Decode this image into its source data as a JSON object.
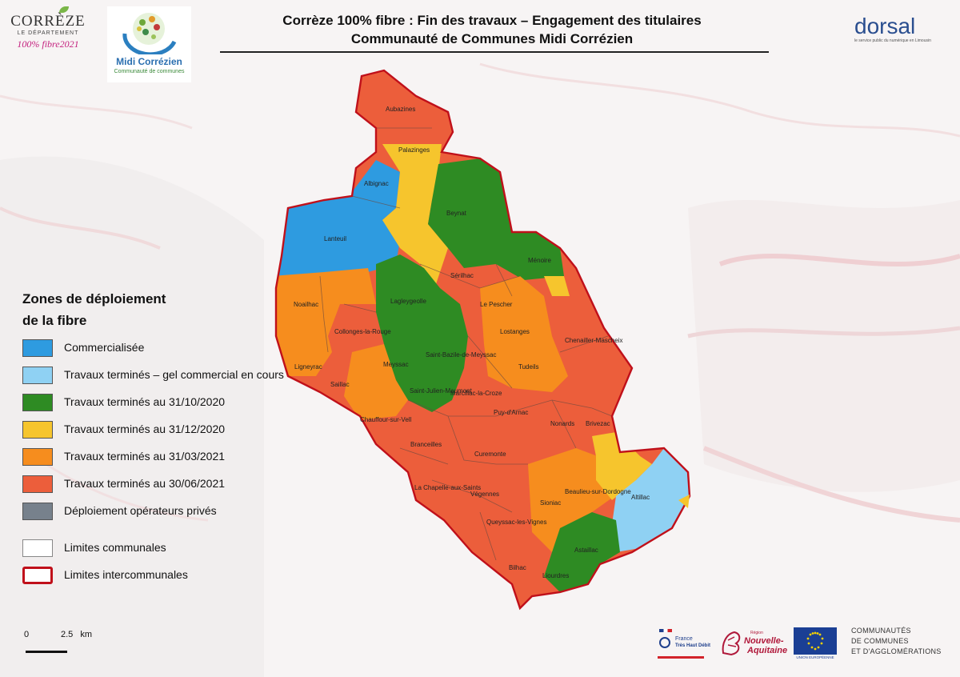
{
  "header": {
    "title_line1": "Corrèze 100% fibre : Fin des travaux – Engagement des titulaires",
    "title_line2": "Communauté de Communes Midi Corrézien"
  },
  "logos": {
    "correze_main": "CORRÈZE",
    "correze_sub": "LE DÉPARTEMENT",
    "correze_fibre": "100% fibre2021",
    "midi_name": "Midi Corrézien",
    "midi_sub": "Communauté de communes",
    "dorsal": "dorsal",
    "dorsal_sub": "le service public du numérique en Limousin",
    "france_thd_1": "France",
    "france_thd_2": "Très Haut Débit",
    "region_small": "Région",
    "region_name_1": "Nouvelle-",
    "region_name_2": "Aquitaine",
    "eu_label": "UNION EUROPÉENNE",
    "communautes_1": "COMMUNAUTÉS",
    "communautes_2": "DE COMMUNES",
    "communautes_3": "ET D'AGGLOMÉRATIONS"
  },
  "legend": {
    "title_line1": "Zones de déploiement",
    "title_line2": "de la fibre",
    "items": [
      {
        "label": "Commercialisée",
        "color": "#2e9be0"
      },
      {
        "label": "Travaux terminés – gel commercial en cours",
        "color": "#8fd1f3"
      },
      {
        "label": "Travaux terminés au 31/10/2020",
        "color": "#2e8b23"
      },
      {
        "label": "Travaux terminés au 31/12/2020",
        "color": "#f6c52d"
      },
      {
        "label": "Travaux terminés au 31/03/2021",
        "color": "#f68d1e"
      },
      {
        "label": "Travaux terminés au 30/06/2021",
        "color": "#ec5e3b"
      },
      {
        "label": "Déploiement opérateurs privés",
        "color": "#77818c"
      },
      {
        "label": "Limites communales",
        "color": "#ffffff"
      },
      {
        "label": "Limites intercommunales",
        "color": "#ffffff"
      }
    ]
  },
  "scale": {
    "zero": "0",
    "value": "2.5",
    "unit": "km"
  },
  "map": {
    "colors": {
      "commercialisee": "#2e9be0",
      "gel": "#8fd1f3",
      "oct2020": "#2e8b23",
      "dec2020": "#f6c52d",
      "mar2021": "#f68d1e",
      "jun2021": "#ec5e3b",
      "boundary": "#c0101a"
    },
    "communes": [
      {
        "name": "Aubazines"
      },
      {
        "name": "Palazinges"
      },
      {
        "name": "Albignac"
      },
      {
        "name": "Beynat"
      },
      {
        "name": "Lanteuil"
      },
      {
        "name": "Ménoire"
      },
      {
        "name": "Sérilhac"
      },
      {
        "name": "Noailhac"
      },
      {
        "name": "Lagleygeolle"
      },
      {
        "name": "Le Pescher"
      },
      {
        "name": "Collonges-la-Rouge"
      },
      {
        "name": "Lostanges"
      },
      {
        "name": "Chenailler-Mascheix"
      },
      {
        "name": "Saint-Bazile-de-Meyssac"
      },
      {
        "name": "Ligneyrac"
      },
      {
        "name": "Meyssac"
      },
      {
        "name": "Tudeils"
      },
      {
        "name": "Saillac"
      },
      {
        "name": "Saint-Julien-Maumont"
      },
      {
        "name": "Marcillac-la-Croze"
      },
      {
        "name": "Puy-d'Arnac"
      },
      {
        "name": "Chauffour-sur-Vell"
      },
      {
        "name": "Nonards"
      },
      {
        "name": "Brivezac"
      },
      {
        "name": "Branceilles"
      },
      {
        "name": "Curemonte"
      },
      {
        "name": "Altillac"
      },
      {
        "name": "La Chapelle-aux-Saints"
      },
      {
        "name": "Végennes"
      },
      {
        "name": "Sioniac"
      },
      {
        "name": "Beaulieu-sur-Dordogne"
      },
      {
        "name": "Queyssac-les-Vignes"
      },
      {
        "name": "Astaillac"
      },
      {
        "name": "Bilhac"
      },
      {
        "name": "Liourdres"
      }
    ]
  }
}
